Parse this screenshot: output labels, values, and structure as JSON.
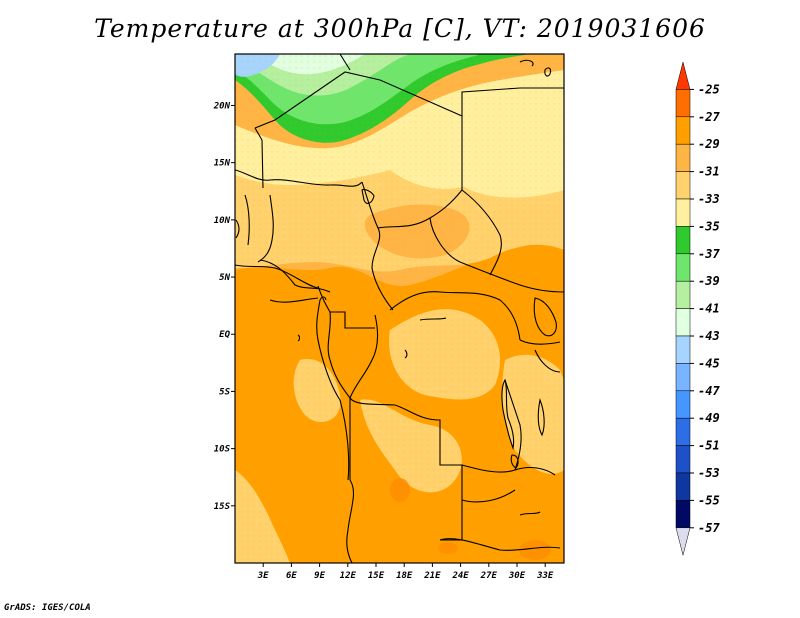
{
  "title": "Temperature at 300hPa [C], VT: 2019031606",
  "credit": "GrADS: IGES/COLA",
  "map": {
    "lon_range": [
      0,
      35
    ],
    "lat_range": [
      -20,
      24.5
    ],
    "lon_ticks": [
      {
        "value": 3,
        "label": "3E"
      },
      {
        "value": 6,
        "label": "6E"
      },
      {
        "value": 9,
        "label": "9E"
      },
      {
        "value": 12,
        "label": "12E"
      },
      {
        "value": 15,
        "label": "15E"
      },
      {
        "value": 18,
        "label": "18E"
      },
      {
        "value": 21,
        "label": "21E"
      },
      {
        "value": 24,
        "label": "24E"
      },
      {
        "value": 27,
        "label": "27E"
      },
      {
        "value": 30,
        "label": "30E"
      },
      {
        "value": 33,
        "label": "33E"
      }
    ],
    "lat_ticks": [
      {
        "value": 20,
        "label": "20N"
      },
      {
        "value": 15,
        "label": "15N"
      },
      {
        "value": 10,
        "label": "10N"
      },
      {
        "value": 5,
        "label": "5N"
      },
      {
        "value": 0,
        "label": "EQ"
      },
      {
        "value": -5,
        "label": "5S"
      },
      {
        "value": -10,
        "label": "10S"
      },
      {
        "value": -15,
        "label": "15S"
      }
    ]
  },
  "colorbar": {
    "labels": [
      "-25",
      "-27",
      "-29",
      "-31",
      "-33",
      "-35",
      "-37",
      "-39",
      "-41",
      "-43",
      "-45",
      "-47",
      "-49",
      "-51",
      "-53",
      "-55",
      "-57"
    ],
    "colors": [
      "#ff3700",
      "#ff6e00",
      "#ffa000",
      "#ffb446",
      "#ffd26e",
      "#fff0a0",
      "#2eca2e",
      "#6ee66e",
      "#b4f0a0",
      "#e1ffe1",
      "#a6d4ff",
      "#78b4ff",
      "#4696ff",
      "#2d6ee6",
      "#1e50c8",
      "#0f37a0",
      "#000a64",
      "#dcdcf0"
    ]
  }
}
